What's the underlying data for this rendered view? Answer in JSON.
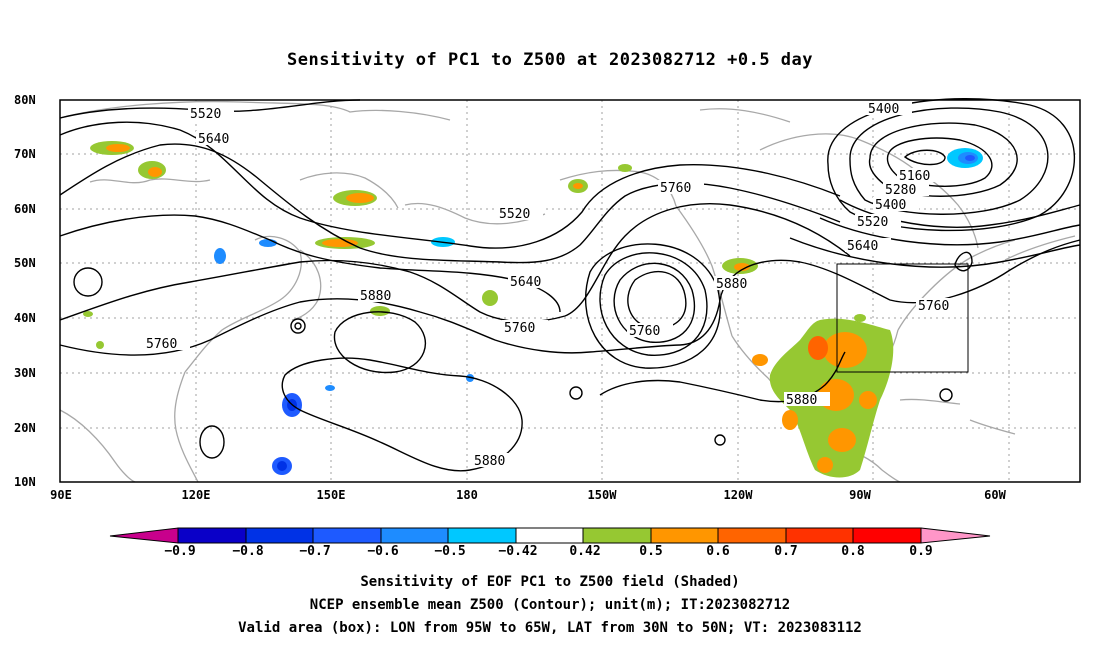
{
  "title": "Sensitivity of PC1 to Z500 at 2023082712 +0.5 day",
  "lat_labels": [
    "80N",
    "70N",
    "60N",
    "50N",
    "40N",
    "30N",
    "20N",
    "10N"
  ],
  "lon_labels": [
    "90E",
    "120E",
    "150E",
    "180",
    "150W",
    "120W",
    "90W",
    "60W"
  ],
  "contour_labels": [
    "5520",
    "5640",
    "5400",
    "5160",
    "5280",
    "5400",
    "5520",
    "5640",
    "5760",
    "5520",
    "5760",
    "5640",
    "5880",
    "5760",
    "5760",
    "5880",
    "5760",
    "5880",
    "5880",
    "5760"
  ],
  "colorbar": {
    "labels": [
      "−0.9",
      "−0.8",
      "−0.7",
      "−0.6",
      "−0.5",
      "−0.42",
      "0.42",
      "0.5",
      "0.6",
      "0.7",
      "0.8",
      "0.9"
    ],
    "colors": [
      "#c8008c",
      "#0a00c8",
      "#0032e6",
      "#1e5aff",
      "#1e8cff",
      "#00c8ff",
      "#ffffff",
      "#96c832",
      "#ff9600",
      "#ff6400",
      "#ff3200",
      "#ff0000",
      "#ff96c8"
    ]
  },
  "captions": [
    "Sensitivity of EOF PC1 to Z500 field (Shaded)",
    "NCEP ensemble mean Z500 (Contour); unit(m); IT:2023082712",
    "Valid area (box): LON from 95W to 65W, LAT from 30N to 50N; VT: 2023083112"
  ],
  "colors": {
    "contour": "#000000",
    "coast": "#a8a8a8",
    "grid": "#a0a0a0",
    "box": "#000000"
  },
  "icons": [
    "map-frame",
    "contour-lines",
    "coastlines",
    "shaded-sensitivity",
    "valid-area-box",
    "colorbar"
  ]
}
